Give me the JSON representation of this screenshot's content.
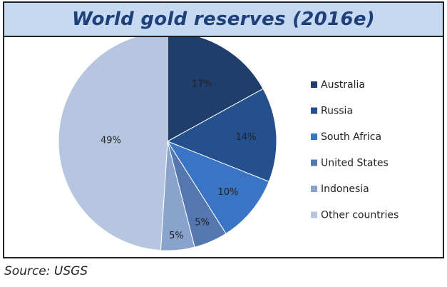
{
  "header": {
    "title": "World gold reserves (2016e)"
  },
  "footer": {
    "source": "Source: USGS"
  },
  "chart_data": {
    "type": "pie",
    "title": "World gold reserves (2016e)",
    "categories": [
      "Australia",
      "Russia",
      "South Africa",
      "United States",
      "Indonesia",
      "Other countries"
    ],
    "values": [
      17,
      14,
      10,
      5,
      5,
      49
    ],
    "labels": [
      "17%",
      "14%",
      "10%",
      "5%",
      "5%",
      "49%"
    ],
    "colors": [
      "#1f3e6c",
      "#24508e",
      "#3a74c4",
      "#5577b0",
      "#8aa3cd",
      "#b7c6e0"
    ],
    "legend_position": "right",
    "start_angle": "top, clockwise"
  }
}
